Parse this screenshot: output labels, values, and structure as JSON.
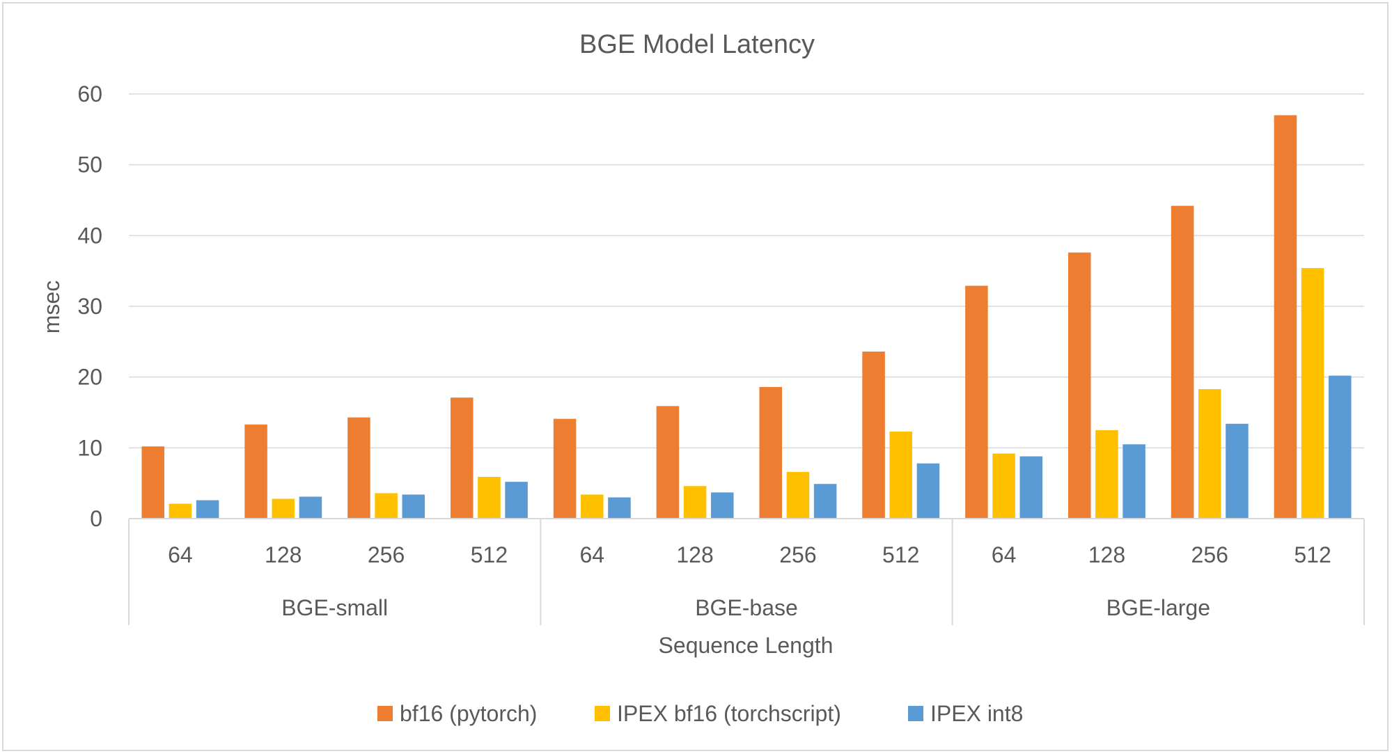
{
  "chart_data": {
    "type": "bar",
    "title": "BGE Model Latency",
    "xlabel": "Sequence Length",
    "ylabel": "msec",
    "ylim": [
      0,
      60
    ],
    "yticks": [
      0,
      10,
      20,
      30,
      40,
      50,
      60
    ],
    "grid": true,
    "legend_position": "bottom",
    "groups": [
      {
        "label": "BGE-small",
        "categories": [
          "64",
          "128",
          "256",
          "512"
        ]
      },
      {
        "label": "BGE-base",
        "categories": [
          "64",
          "128",
          "256",
          "512"
        ]
      },
      {
        "label": "BGE-large",
        "categories": [
          "64",
          "128",
          "256",
          "512"
        ]
      }
    ],
    "series": [
      {
        "name": "bf16 (pytorch)",
        "color": "#ed7d31",
        "values": [
          10.2,
          13.3,
          14.3,
          17.1,
          14.1,
          15.9,
          18.6,
          23.6,
          32.9,
          37.6,
          44.2,
          57.0
        ]
      },
      {
        "name": "IPEX bf16 (torchscript)",
        "color": "#ffc000",
        "values": [
          2.1,
          2.8,
          3.6,
          5.9,
          3.4,
          4.6,
          6.6,
          12.3,
          9.2,
          12.5,
          18.3,
          35.4
        ]
      },
      {
        "name": "IPEX int8",
        "color": "#5b9bd5",
        "values": [
          2.6,
          3.1,
          3.4,
          5.2,
          3.0,
          3.7,
          4.9,
          7.8,
          8.8,
          10.5,
          13.4,
          20.2
        ]
      }
    ]
  }
}
